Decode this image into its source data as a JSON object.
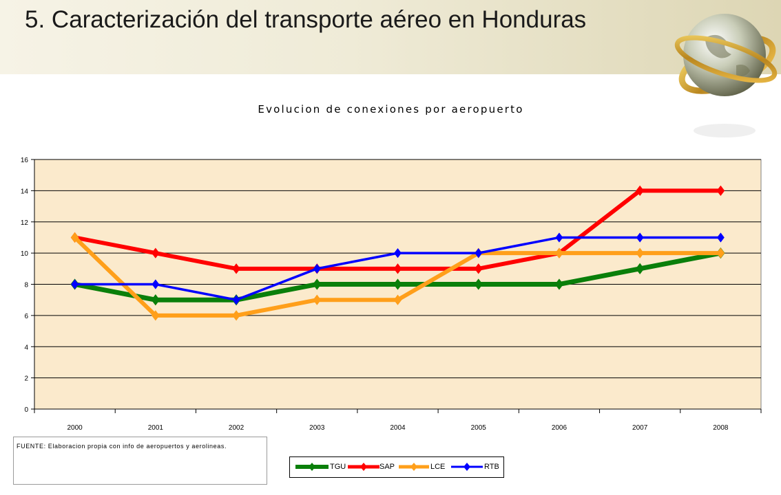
{
  "slide": {
    "title": "5. Caracterización del transporte aéreo en Honduras",
    "source_note": "FUENTE: Elaboracion propia con info de aeropuertos y aerolineas."
  },
  "colors": {
    "TGU": "#0a7f0a",
    "SAP": "#ff0000",
    "LCE": "#ff9f1a",
    "RTB": "#0000ff",
    "plot_bg": "#fbeacc",
    "gridline": "#000000"
  },
  "chart_data": {
    "type": "line",
    "title": "Evolucion de conexiones por aeropuerto",
    "xlabel": "",
    "ylabel": "",
    "categories": [
      "2000",
      "2001",
      "2002",
      "2003",
      "2004",
      "2005",
      "2006",
      "2007",
      "2008"
    ],
    "ylim": [
      0,
      16
    ],
    "yticks": [
      "0",
      "2",
      "4",
      "6",
      "8",
      "10",
      "12",
      "14",
      "16"
    ],
    "grid": true,
    "legend": "bottom",
    "series": [
      {
        "name": "TGU",
        "values": [
          8,
          7,
          7,
          8,
          8,
          8,
          8,
          9,
          10
        ]
      },
      {
        "name": "SAP",
        "values": [
          11,
          10,
          9,
          9,
          9,
          9,
          10,
          14,
          14
        ]
      },
      {
        "name": "LCE",
        "values": [
          11,
          6,
          6,
          7,
          7,
          10,
          10,
          10,
          10
        ]
      },
      {
        "name": "RTB",
        "values": [
          8,
          8,
          7,
          9,
          10,
          10,
          11,
          11,
          11
        ]
      }
    ]
  }
}
